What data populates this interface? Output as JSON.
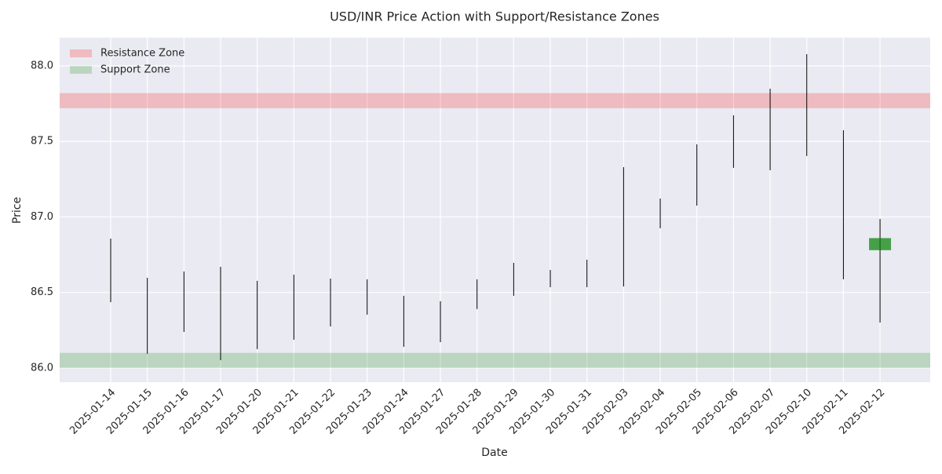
{
  "chart_data": {
    "type": "candlestick",
    "title": "USD/INR Price Action with Support/Resistance Zones",
    "xlabel": "Date",
    "ylabel": "Price",
    "categories": [
      "2025-01-14",
      "2025-01-15",
      "2025-01-16",
      "2025-01-17",
      "2025-01-20",
      "2025-01-21",
      "2025-01-22",
      "2025-01-23",
      "2025-01-24",
      "2025-01-27",
      "2025-01-28",
      "2025-01-29",
      "2025-01-30",
      "2025-01-31",
      "2025-02-03",
      "2025-02-04",
      "2025-02-05",
      "2025-02-06",
      "2025-02-07",
      "2025-02-10",
      "2025-02-11",
      "2025-02-12"
    ],
    "high": [
      86.857,
      86.597,
      86.639,
      86.67,
      86.577,
      86.618,
      86.592,
      86.587,
      86.478,
      86.442,
      86.587,
      86.696,
      86.649,
      86.717,
      87.33,
      87.122,
      87.481,
      87.673,
      87.849,
      88.078,
      87.574,
      86.987
    ],
    "low": [
      86.436,
      86.094,
      86.239,
      86.052,
      86.125,
      86.187,
      86.275,
      86.353,
      86.14,
      86.171,
      86.39,
      86.478,
      86.535,
      86.535,
      86.54,
      86.925,
      87.075,
      87.325,
      87.309,
      87.403,
      86.587,
      86.301
    ],
    "open": [
      null,
      null,
      null,
      null,
      null,
      null,
      null,
      null,
      null,
      null,
      null,
      null,
      null,
      null,
      null,
      null,
      null,
      null,
      null,
      null,
      null,
      86.78
    ],
    "close": [
      null,
      null,
      null,
      null,
      null,
      null,
      null,
      null,
      null,
      null,
      null,
      null,
      null,
      null,
      null,
      null,
      null,
      null,
      null,
      null,
      null,
      86.86
    ],
    "up_color": "green",
    "wick_color": "black",
    "zones": [
      {
        "name": "Resistance Zone",
        "range": [
          87.72,
          87.82
        ],
        "color": "red"
      },
      {
        "name": "Support Zone",
        "range": [
          86.0,
          86.1
        ],
        "color": "green"
      }
    ],
    "ylim": [
      85.906,
      88.187
    ],
    "yticks": [
      {
        "value": 86,
        "label": "86.0"
      },
      {
        "value": 86.5,
        "label": "86.5"
      },
      {
        "value": 87,
        "label": "87.0"
      },
      {
        "value": 87.5,
        "label": "87.5"
      },
      {
        "value": 88,
        "label": "88.0"
      }
    ],
    "grid": true,
    "legend": "upper left"
  }
}
